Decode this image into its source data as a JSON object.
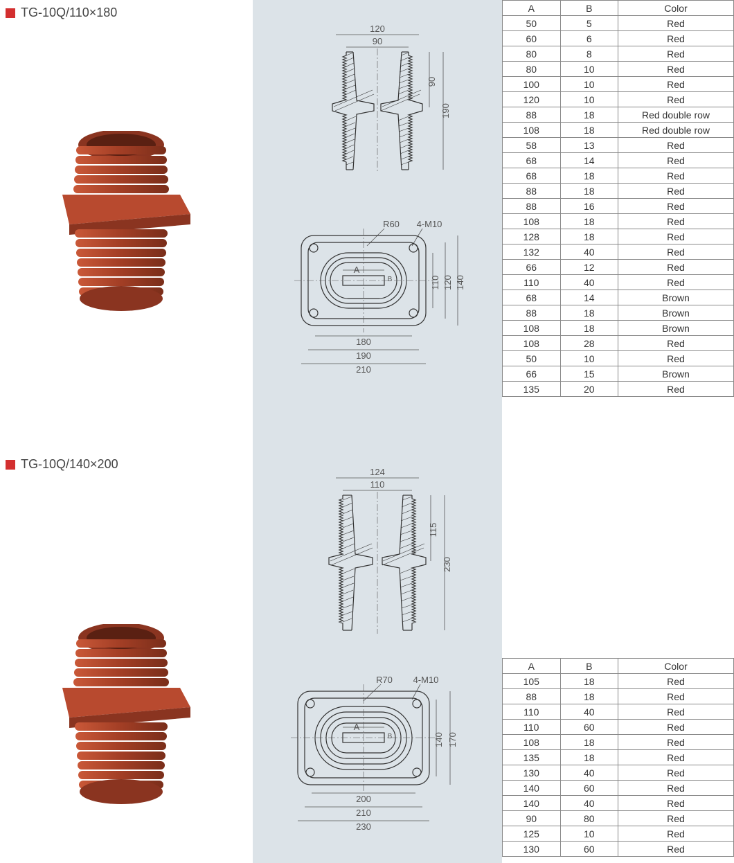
{
  "product1": {
    "title": "TG-10Q/110×180",
    "marker_color": "#d32f2f",
    "image_colors": {
      "body": "#b84a2f",
      "dark": "#8a3420",
      "flange": "#a8432a"
    },
    "cross_section": {
      "top_outer": "120",
      "top_inner": "90",
      "right_inner": "90",
      "right_outer": "190",
      "bottom_outer": "210",
      "bottom_mid": "190",
      "bottom_inner": "180",
      "side_top_outer": "140",
      "side_top_mid": "120",
      "side_top_inner": "110",
      "radius": "R60",
      "bolts": "4-M10",
      "center_a": "A",
      "center_b": "B"
    },
    "table": {
      "columns": [
        "A",
        "B",
        "Color"
      ],
      "rows": [
        [
          "50",
          "5",
          "Red"
        ],
        [
          "60",
          "6",
          "Red"
        ],
        [
          "80",
          "8",
          "Red"
        ],
        [
          "80",
          "10",
          "Red"
        ],
        [
          "100",
          "10",
          "Red"
        ],
        [
          "120",
          "10",
          "Red"
        ],
        [
          "88",
          "18",
          "Red double row"
        ],
        [
          "108",
          "18",
          "Red double row"
        ],
        [
          "58",
          "13",
          "Red"
        ],
        [
          "68",
          "14",
          "Red"
        ],
        [
          "68",
          "18",
          "Red"
        ],
        [
          "88",
          "18",
          "Red"
        ],
        [
          "88",
          "16",
          "Red"
        ],
        [
          "108",
          "18",
          "Red"
        ],
        [
          "128",
          "18",
          "Red"
        ],
        [
          "132",
          "40",
          "Red"
        ],
        [
          "66",
          "12",
          "Red"
        ],
        [
          "110",
          "40",
          "Red"
        ],
        [
          "68",
          "14",
          "Brown"
        ],
        [
          "88",
          "18",
          "Brown"
        ],
        [
          "108",
          "18",
          "Brown"
        ],
        [
          "108",
          "28",
          "Red"
        ],
        [
          "50",
          "10",
          "Red"
        ],
        [
          "66",
          "15",
          "Brown"
        ],
        [
          "135",
          "20",
          "Red"
        ]
      ]
    }
  },
  "product2": {
    "title": "TG-10Q/140×200",
    "marker_color": "#d32f2f",
    "image_colors": {
      "body": "#b84a2f",
      "dark": "#8a3420",
      "flange": "#a8432a"
    },
    "cross_section": {
      "top_outer": "124",
      "top_inner": "110",
      "right_inner": "115",
      "right_outer": "230",
      "bottom_outer": "230",
      "bottom_mid": "210",
      "bottom_inner": "200",
      "side_top_outer": "170",
      "side_top_inner": "140",
      "radius": "R70",
      "bolts": "4-M10",
      "center_a": "A",
      "center_b": "B"
    },
    "table": {
      "columns": [
        "A",
        "B",
        "Color"
      ],
      "rows": [
        [
          "105",
          "18",
          "Red"
        ],
        [
          "88",
          "18",
          "Red"
        ],
        [
          "110",
          "40",
          "Red"
        ],
        [
          "110",
          "60",
          "Red"
        ],
        [
          "108",
          "18",
          "Red"
        ],
        [
          "135",
          "18",
          "Red"
        ],
        [
          "130",
          "40",
          "Red"
        ],
        [
          "140",
          "60",
          "Red"
        ],
        [
          "140",
          "40",
          "Red"
        ],
        [
          "90",
          "80",
          "Red"
        ],
        [
          "125",
          "10",
          "Red"
        ],
        [
          "130",
          "60",
          "Red"
        ]
      ]
    }
  },
  "style": {
    "diagram_bg": "#dce3e8",
    "border_color": "#888",
    "text_color": "#333"
  }
}
